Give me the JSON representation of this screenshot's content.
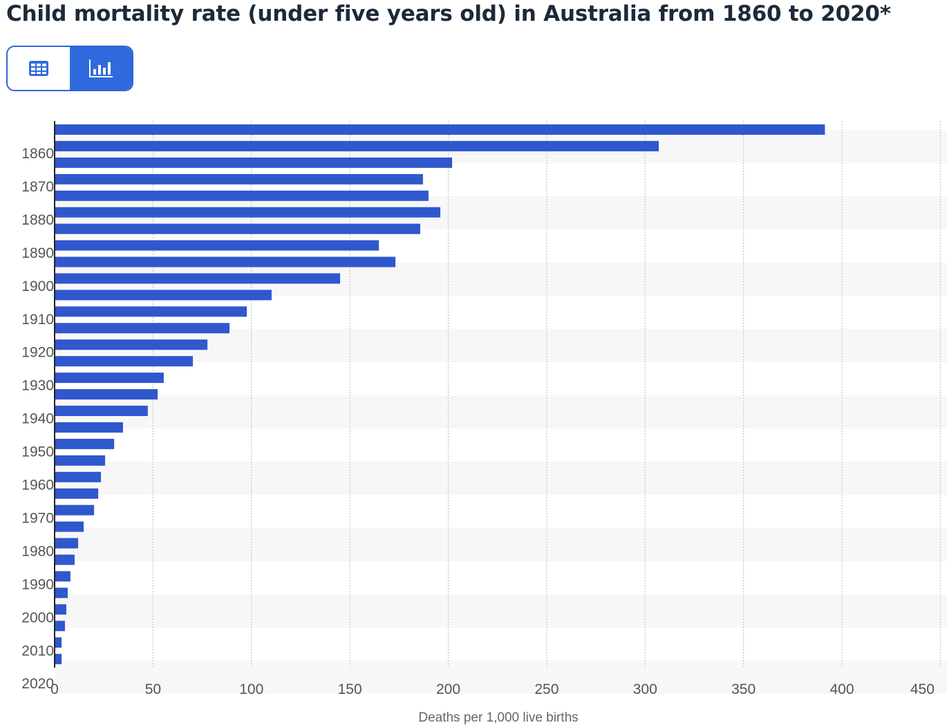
{
  "title": "Child mortality rate (under five years old) in Australia from 1860 to 2020*",
  "toggle": {
    "table_icon": "table-icon",
    "chart_icon": "bar-chart-icon",
    "active": "chart"
  },
  "colors": {
    "bar": "#2f58cd",
    "accent": "#2f6bdc",
    "stripe": "#f7f7f7"
  },
  "chart_data": {
    "type": "bar",
    "orientation": "horizontal",
    "title": "Child mortality rate (under five years old) in Australia from 1860 to 2020*",
    "xlabel": "Deaths per 1,000 live births",
    "ylabel": "",
    "categories": [
      1860,
      1865,
      1870,
      1875,
      1880,
      1885,
      1890,
      1895,
      1900,
      1905,
      1910,
      1915,
      1920,
      1925,
      1930,
      1935,
      1940,
      1945,
      1950,
      1955,
      1960,
      1965,
      1970,
      1975,
      1980,
      1985,
      1990,
      1995,
      2000,
      2005,
      2010,
      2015,
      2020
    ],
    "values": [
      391,
      306.6,
      201.6,
      186.8,
      189.6,
      195.6,
      185.4,
      164.4,
      172.8,
      144.7,
      109.9,
      97.3,
      88.5,
      77.3,
      69.9,
      55.1,
      52,
      47,
      34.4,
      29.9,
      25.3,
      23.2,
      21.8,
      19.7,
      14.4,
      11.6,
      9.8,
      7.7,
      6.3,
      5.6,
      4.9,
      3.2,
      3.2
    ],
    "y_tick_labels": [
      "1860",
      "1870",
      "1880",
      "1890",
      "1900",
      "1910",
      "1920",
      "1930",
      "1940",
      "1950",
      "1960",
      "1970",
      "1980",
      "1990",
      "2000",
      "2010",
      "2020"
    ],
    "x_ticks": [
      0,
      50,
      100,
      150,
      200,
      250,
      300,
      350,
      400,
      450
    ],
    "xlim": [
      0,
      450
    ],
    "grid": true
  }
}
